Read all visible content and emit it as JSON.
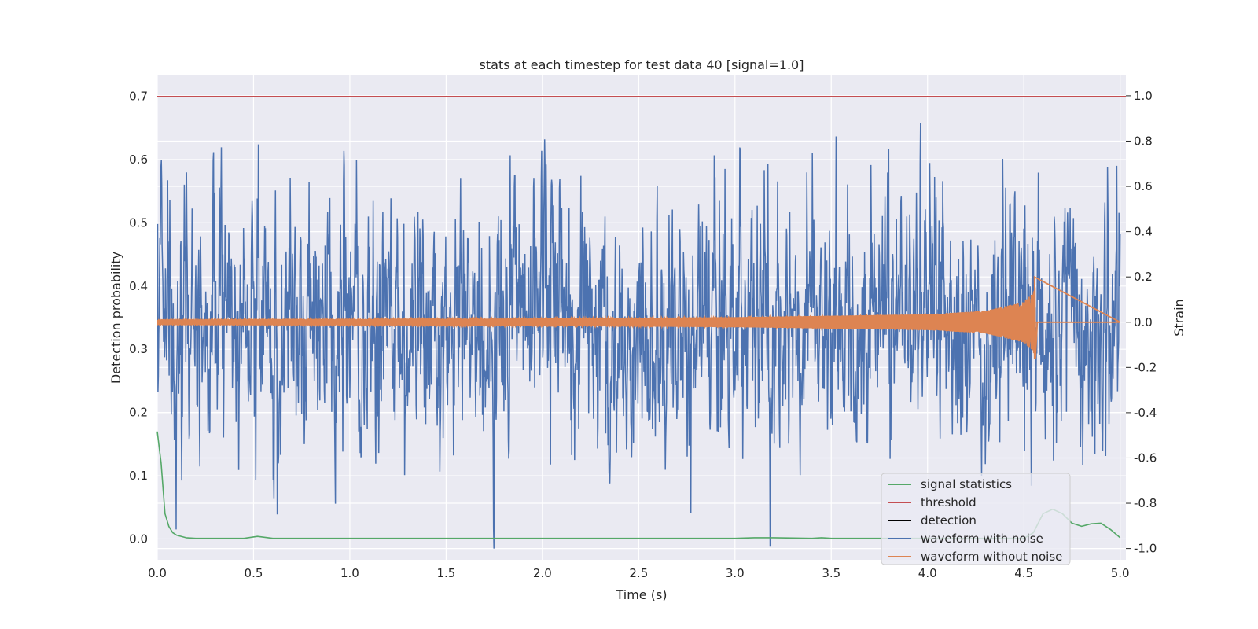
{
  "chart_data": {
    "type": "line",
    "title": "stats at each timestep for test data 40 [signal=1.0]",
    "xlabel": "Time (s)",
    "ylabel_left": "Detection probability",
    "ylabel_right": "Strain",
    "xlim": [
      0.0,
      5.03
    ],
    "ylim_left": [
      -0.033,
      0.733
    ],
    "ylim_right": [
      -1.05,
      1.09
    ],
    "x_ticks": [
      "0.0",
      "0.5",
      "1.0",
      "1.5",
      "2.0",
      "2.5",
      "3.0",
      "3.5",
      "4.0",
      "4.5",
      "5.0"
    ],
    "x_tick_values": [
      0,
      0.5,
      1.0,
      1.5,
      2.0,
      2.5,
      3.0,
      3.5,
      4.0,
      4.5,
      5.0
    ],
    "y_left_ticks": [
      "0.0",
      "0.1",
      "0.2",
      "0.3",
      "0.4",
      "0.5",
      "0.6",
      "0.7"
    ],
    "y_left_tick_values": [
      0,
      0.1,
      0.2,
      0.3,
      0.4,
      0.5,
      0.6,
      0.7
    ],
    "y_right_ticks": [
      "-1.0",
      "-0.8",
      "-0.6",
      "-0.4",
      "-0.2",
      "0.0",
      "0.2",
      "0.4",
      "0.6",
      "0.8",
      "1.0"
    ],
    "y_right_tick_values": [
      -1.0,
      -0.8,
      -0.6,
      -0.4,
      -0.2,
      0,
      0.2,
      0.4,
      0.6,
      0.8,
      1.0
    ],
    "grid": true,
    "legend_position": "lower-right",
    "series": [
      {
        "name": "signal statistics",
        "axis": "left",
        "color": "#55a868",
        "x": [
          0.0,
          0.02,
          0.04,
          0.06,
          0.08,
          0.1,
          0.15,
          0.2,
          0.3,
          0.45,
          0.52,
          0.6,
          1.0,
          2.0,
          3.0,
          3.1,
          3.2,
          3.4,
          3.45,
          3.5,
          4.0,
          4.3,
          4.5,
          4.55,
          4.6,
          4.65,
          4.7,
          4.75,
          4.8,
          4.85,
          4.9,
          4.95,
          5.0
        ],
        "y": [
          0.17,
          0.12,
          0.04,
          0.02,
          0.01,
          0.006,
          0.002,
          0.001,
          0.001,
          0.001,
          0.004,
          0.001,
          0.001,
          0.001,
          0.001,
          0.002,
          0.002,
          0.001,
          0.002,
          0.001,
          0.001,
          0.001,
          0.001,
          0.01,
          0.04,
          0.047,
          0.04,
          0.025,
          0.02,
          0.024,
          0.025,
          0.015,
          0.002
        ]
      },
      {
        "name": "threshold",
        "axis": "left",
        "color": "#c44e52",
        "x": [
          0.0,
          5.03
        ],
        "y": [
          0.7,
          0.7
        ]
      },
      {
        "name": "detection",
        "axis": "left",
        "color": "#000000",
        "x": [],
        "y": []
      },
      {
        "name": "waveform with noise",
        "axis": "right",
        "color": "#4c72b0",
        "x_range": [
          0.0,
          5.0
        ],
        "y_range": [
          -1.0,
          0.93
        ],
        "sample_rate": 2048
      },
      {
        "name": "waveform without noise",
        "axis": "right",
        "color": "#dd8452",
        "x": [
          0.0,
          1.0,
          2.0,
          3.0,
          4.0,
          4.3,
          4.5,
          4.55,
          4.56,
          4.57,
          5.0
        ],
        "envelope": [
          0.01,
          0.012,
          0.016,
          0.022,
          0.035,
          0.05,
          0.09,
          0.13,
          0.19,
          0.0,
          0.0
        ],
        "peak": [
          4.555,
          0.2
        ],
        "trough": [
          4.56,
          -0.16
        ]
      }
    ]
  }
}
